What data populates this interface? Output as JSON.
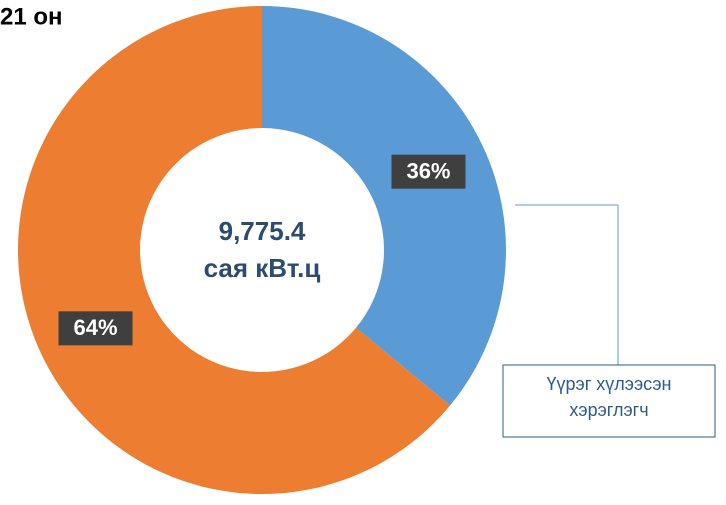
{
  "chart_data": {
    "type": "donut",
    "title": "21 он",
    "center_label": [
      "9,775.4",
      "сая кВт.ц"
    ],
    "categories": [
      "Үүрэг хүлээсэн хэрэглэгч",
      null
    ],
    "values": [
      36,
      64
    ],
    "value_labels": [
      "36%",
      "64%"
    ],
    "colors": [
      "#5B9BD5",
      "#ED7D31"
    ]
  }
}
